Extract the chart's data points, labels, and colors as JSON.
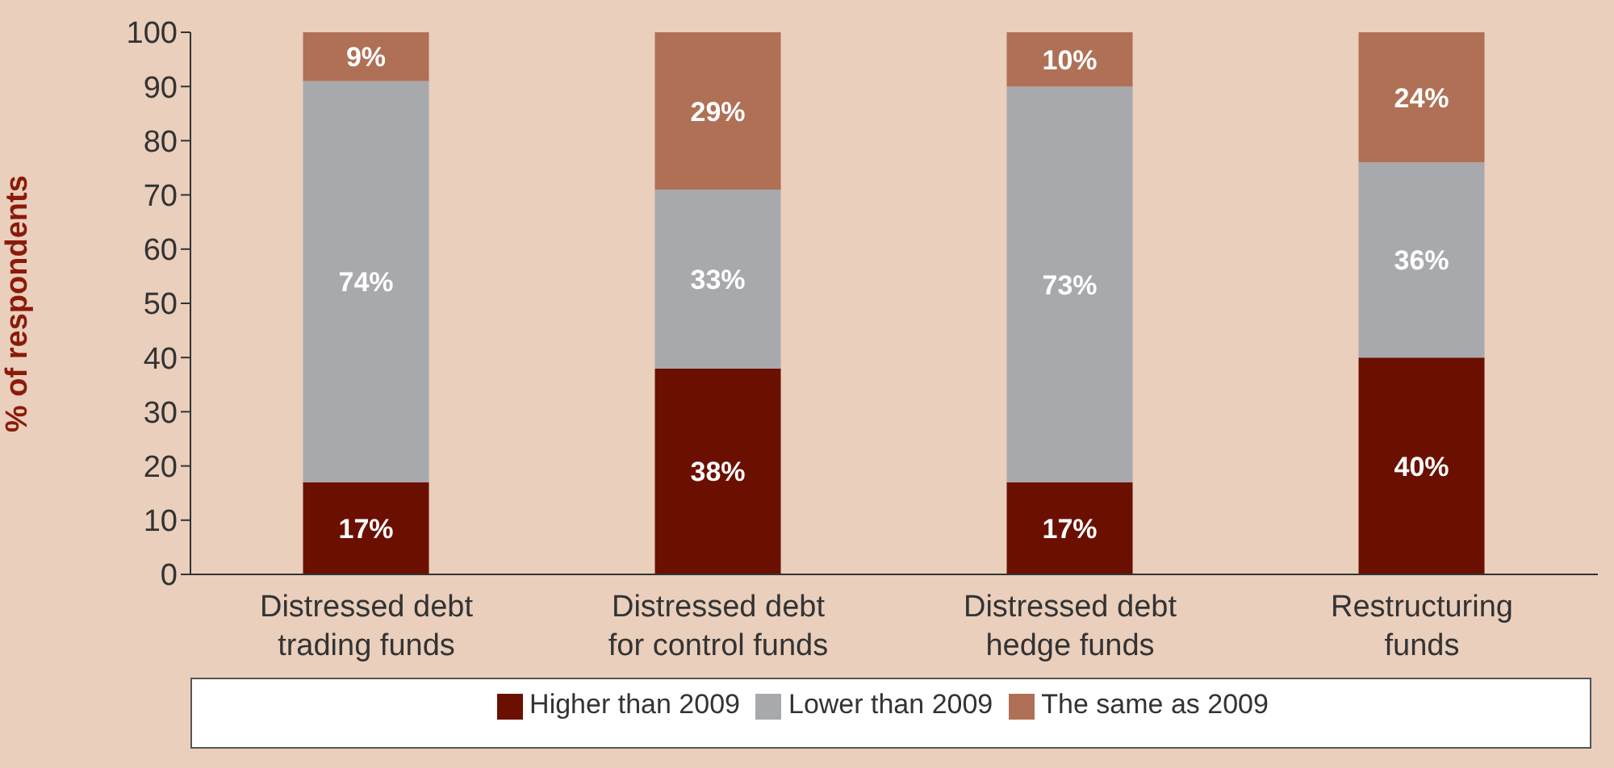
{
  "chart_data": {
    "type": "bar",
    "stacked": true,
    "ylabel": "% of respondents",
    "categories": [
      "Distressed debt trading funds",
      "Distressed debt for control funds",
      "Distressed debt hedge funds",
      "Restructuring funds"
    ],
    "series": [
      {
        "name": "Higher than 2009",
        "color": "#6b1000",
        "values": [
          17,
          38,
          17,
          40
        ],
        "value_labels": [
          "17%",
          "38%",
          "17%",
          "40%"
        ]
      },
      {
        "name": "Lower than 2009",
        "color": "#a7a9ac",
        "values": [
          74,
          33,
          73,
          36
        ],
        "value_labels": [
          "74%",
          "33%",
          "73%",
          "36%"
        ]
      },
      {
        "name": "The same as 2009",
        "color": "#b07056",
        "values": [
          9,
          29,
          10,
          24
        ],
        "value_labels": [
          "9%",
          "29%",
          "10%",
          "24%"
        ]
      }
    ],
    "ylim": [
      0,
      100
    ],
    "yticks": [
      0,
      10,
      20,
      30,
      40,
      50,
      60,
      70,
      80,
      90,
      100
    ],
    "grid": false,
    "legend": "bottom"
  }
}
